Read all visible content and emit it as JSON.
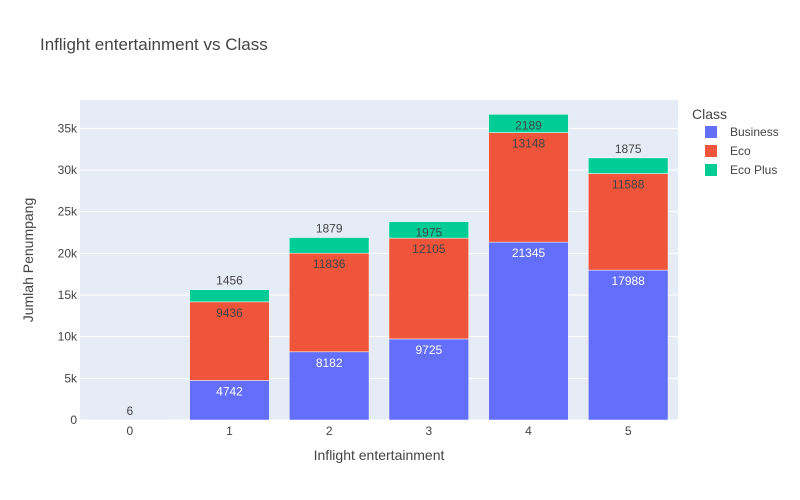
{
  "chart_data": {
    "type": "bar",
    "barmode": "stack",
    "title": "Inflight entertainment vs Class",
    "xlabel": "Inflight entertainment",
    "ylabel": "Jumlah Penumpang",
    "categories": [
      "0",
      "1",
      "2",
      "3",
      "4",
      "5"
    ],
    "ylim": [
      0,
      38400
    ],
    "yticks": [
      0,
      5000,
      10000,
      15000,
      20000,
      25000,
      30000,
      35000
    ],
    "ytick_labels": [
      "0",
      "5k",
      "10k",
      "15k",
      "20k",
      "25k",
      "30k",
      "35k"
    ],
    "grid": true,
    "legend": {
      "title": "Class",
      "position": "top-right"
    },
    "series": [
      {
        "name": "Business",
        "color": "#636efa",
        "label_color": "#ffffff",
        "values": [
          0,
          4742,
          8182,
          9725,
          21345,
          17988
        ],
        "labels": [
          "",
          "4742",
          "8182",
          "9725",
          "21345",
          "17988"
        ]
      },
      {
        "name": "Eco",
        "color": "#ef553b",
        "label_color": "#444444",
        "values": [
          6,
          9436,
          11836,
          12105,
          13148,
          11588
        ],
        "labels": [
          "6",
          "9436",
          "11836",
          "12105",
          "13148",
          "11588"
        ]
      },
      {
        "name": "Eco Plus",
        "color": "#00cc96",
        "label_color": "#444444",
        "values": [
          0,
          1456,
          1879,
          1975,
          2189,
          1875
        ],
        "labels": [
          "",
          "1456",
          "1879",
          "1975",
          "2189",
          "1875"
        ]
      }
    ]
  }
}
